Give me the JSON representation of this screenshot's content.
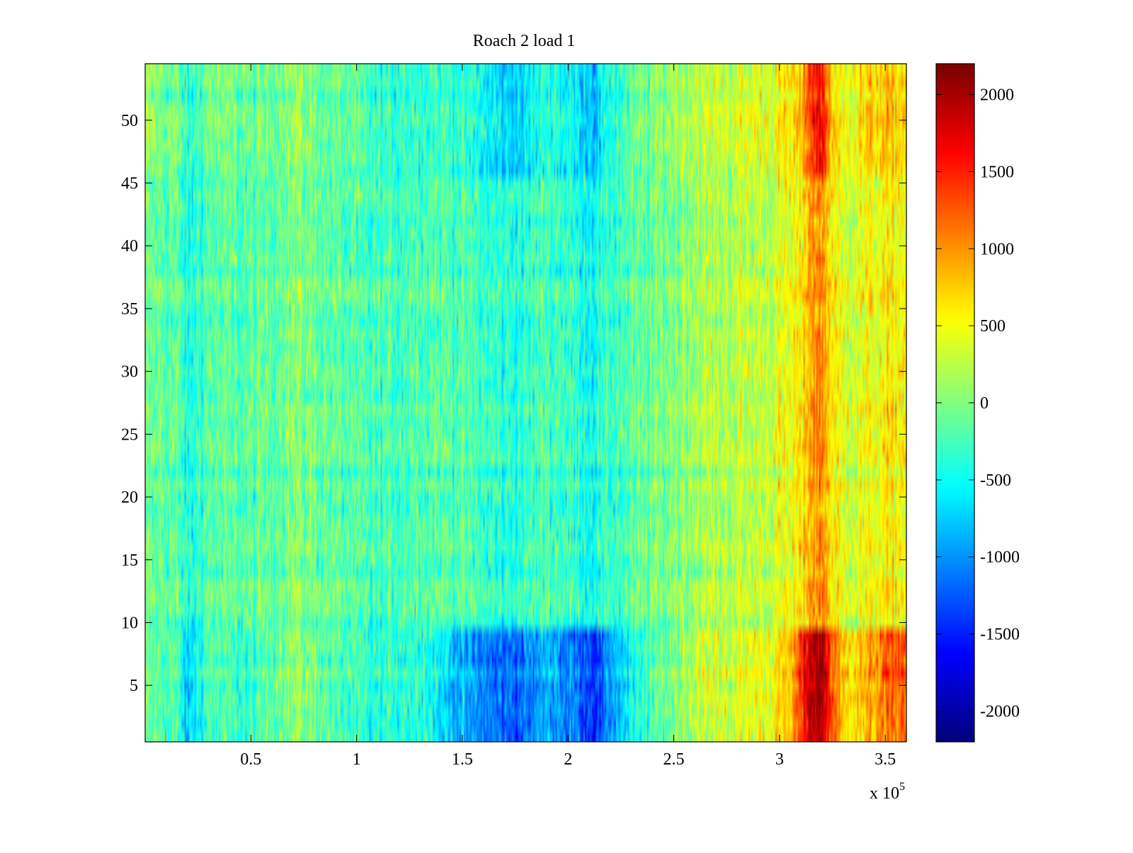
{
  "chart_data": {
    "type": "heatmap",
    "title": "Roach 2 load 1",
    "xlabel": "",
    "ylabel": "",
    "x_multiplier_label": "x 10",
    "x_multiplier_exponent": "5",
    "xlim": [
      0,
      3.6
    ],
    "ylim": [
      0.5,
      54.5
    ],
    "x_ticks": [
      0.5,
      1,
      1.5,
      2,
      2.5,
      3,
      3.5
    ],
    "x_tick_labels": [
      "0.5",
      "1",
      "1.5",
      "2",
      "2.5",
      "3",
      "3.5"
    ],
    "y_ticks": [
      5,
      10,
      15,
      20,
      25,
      30,
      35,
      40,
      45,
      50
    ],
    "y_tick_labels": [
      "5",
      "10",
      "15",
      "20",
      "25",
      "30",
      "35",
      "40",
      "45",
      "50"
    ],
    "rows": 54,
    "colormap": "jet",
    "colorbar": {
      "range": [
        -2200,
        2200
      ],
      "ticks": [
        -2000,
        -1500,
        -1000,
        -500,
        0,
        500,
        1000,
        1500,
        2000
      ],
      "tick_labels": [
        "-2000",
        "-1500",
        "-1000",
        "-500",
        "0",
        "500",
        "1000",
        "1500",
        "2000"
      ]
    },
    "column_profile_x": [
      0,
      0.15,
      0.2,
      0.3,
      0.5,
      0.7,
      0.9,
      1.1,
      1.3,
      1.5,
      1.7,
      1.8,
      1.9,
      2.1,
      2.15,
      2.2,
      2.4,
      2.6,
      2.8,
      2.95,
      3.05,
      3.1,
      3.15,
      3.2,
      3.25,
      3.3,
      3.4,
      3.5,
      3.6
    ],
    "column_profile_mean": [
      -100,
      -150,
      -500,
      -150,
      -200,
      0,
      -150,
      -300,
      -150,
      -200,
      -400,
      -350,
      -200,
      -450,
      -400,
      -300,
      -100,
      150,
      250,
      300,
      450,
      550,
      1000,
      1050,
      600,
      400,
      450,
      550,
      550
    ],
    "bottom_band_rows": [
      1,
      9
    ],
    "bottom_band_profile_mean": [
      -100,
      -200,
      -800,
      -200,
      -300,
      100,
      -200,
      -400,
      -300,
      -900,
      -1200,
      -1150,
      -800,
      -1300,
      -1400,
      -900,
      -200,
      300,
      400,
      500,
      800,
      1400,
      2000,
      2100,
      1300,
      700,
      800,
      1200,
      1300
    ],
    "top_band_rows": [
      46,
      54
    ],
    "top_band_profile_mean": [
      100,
      0,
      -400,
      0,
      -100,
      100,
      -100,
      -300,
      -250,
      -300,
      -700,
      -650,
      -300,
      -700,
      -700,
      -300,
      0,
      300,
      400,
      450,
      600,
      800,
      1500,
      1700,
      800,
      500,
      700,
      800,
      800
    ]
  }
}
